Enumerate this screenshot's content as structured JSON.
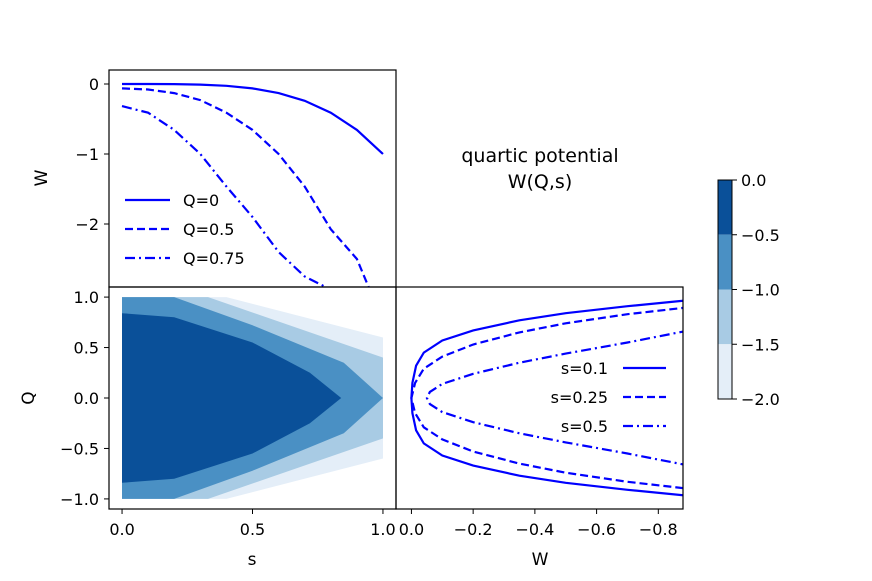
{
  "chart_data": [
    {
      "type": "line",
      "panel": "top-left",
      "xlabel": "",
      "ylabel": "W",
      "xlim": [
        -0.05,
        1.05
      ],
      "ylim": [
        -2.9,
        0.2
      ],
      "yticks": [
        0,
        -1,
        -2
      ],
      "ytick_labels": [
        "0",
        "−1",
        "−2"
      ],
      "legend_position": "lower-left",
      "series": [
        {
          "name": "Q=0",
          "dash": "solid",
          "points": [
            [
              0.0,
              0.0
            ],
            [
              0.1,
              -0.0001
            ],
            [
              0.2,
              -0.0016
            ],
            [
              0.3,
              -0.0081
            ],
            [
              0.4,
              -0.0256
            ],
            [
              0.5,
              -0.0625
            ],
            [
              0.6,
              -0.1296
            ],
            [
              0.7,
              -0.2401
            ],
            [
              0.8,
              -0.4096
            ],
            [
              0.9,
              -0.6561
            ],
            [
              1.0,
              -1.0
            ]
          ]
        },
        {
          "name": "Q=0.5",
          "dash": "dashed",
          "points": [
            [
              0.0,
              -0.0625
            ],
            [
              0.1,
              -0.0781
            ],
            [
              0.2,
              -0.1296
            ],
            [
              0.3,
              -0.2306
            ],
            [
              0.4,
              -0.4096
            ],
            [
              0.5,
              -0.6561
            ],
            [
              0.6,
              -1.0
            ],
            [
              0.7,
              -1.4641
            ],
            [
              0.8,
              -2.0736
            ],
            [
              0.9,
              -2.5
            ],
            [
              0.945,
              -2.9
            ]
          ]
        },
        {
          "name": "Q=0.75",
          "dash": "dashdot",
          "points": [
            [
              0.0,
              -0.3164
            ],
            [
              0.1,
              -0.4096
            ],
            [
              0.2,
              -0.6561
            ],
            [
              0.3,
              -1.0
            ],
            [
              0.4,
              -1.4641
            ],
            [
              0.5,
              -1.9
            ],
            [
              0.6,
              -2.4
            ],
            [
              0.7,
              -2.75
            ],
            [
              0.78,
              -2.9
            ]
          ]
        }
      ]
    },
    {
      "type": "heatmap",
      "panel": "bottom-left",
      "xlabel": "s",
      "ylabel": "Q",
      "xlim": [
        -0.05,
        1.05
      ],
      "ylim": [
        -1.1,
        1.1
      ],
      "xticks": [
        0.0,
        0.5,
        1.0
      ],
      "xtick_labels": [
        "0.0",
        "0.5",
        "1.0"
      ],
      "yticks": [
        1.0,
        0.5,
        0.0,
        -0.5,
        -1.0
      ],
      "ytick_labels": [
        "1.0",
        "0.5",
        "0.0",
        "−0.5",
        "−1.0"
      ],
      "levels": [
        -2.0,
        -1.5,
        -1.0,
        -0.5,
        0.0
      ],
      "colors": [
        "#e4eef8",
        "#a8cbe4",
        "#4a90c4",
        "#0a5099"
      ]
    },
    {
      "type": "line",
      "panel": "bottom-right",
      "xlabel": "W",
      "ylabel": "",
      "xlim": [
        0.05,
        -0.88
      ],
      "ylim": [
        -1.1,
        1.1
      ],
      "xticks": [
        0.0,
        -0.2,
        -0.4,
        -0.6,
        -0.8
      ],
      "xtick_labels": [
        "0.0",
        "−0.2",
        "−0.4",
        "−0.6",
        "−0.8"
      ],
      "legend_position": "center-right",
      "series": [
        {
          "name": "s=0.1",
          "dash": "solid",
          "points": [
            [
              -0.9,
              0.97
            ],
            [
              -0.7,
              0.91
            ],
            [
              -0.5,
              0.84
            ],
            [
              -0.35,
              0.77
            ],
            [
              -0.2,
              0.67
            ],
            [
              -0.1,
              0.57
            ],
            [
              -0.04,
              0.45
            ],
            [
              -0.015,
              0.32
            ],
            [
              -0.003,
              0.15
            ],
            [
              0.0,
              0.0
            ],
            [
              -0.003,
              -0.15
            ],
            [
              -0.015,
              -0.32
            ],
            [
              -0.04,
              -0.45
            ],
            [
              -0.1,
              -0.57
            ],
            [
              -0.2,
              -0.67
            ],
            [
              -0.35,
              -0.77
            ],
            [
              -0.5,
              -0.84
            ],
            [
              -0.7,
              -0.91
            ],
            [
              -0.9,
              -0.97
            ]
          ]
        },
        {
          "name": "s=0.25",
          "dash": "dashed",
          "points": [
            [
              -0.9,
              0.9
            ],
            [
              -0.7,
              0.83
            ],
            [
              -0.5,
              0.74
            ],
            [
              -0.35,
              0.65
            ],
            [
              -0.2,
              0.53
            ],
            [
              -0.1,
              0.41
            ],
            [
              -0.04,
              0.29
            ],
            [
              -0.012,
              0.15
            ],
            [
              0.0,
              0.0
            ],
            [
              -0.012,
              -0.15
            ],
            [
              -0.04,
              -0.29
            ],
            [
              -0.1,
              -0.41
            ],
            [
              -0.2,
              -0.53
            ],
            [
              -0.35,
              -0.65
            ],
            [
              -0.5,
              -0.74
            ],
            [
              -0.7,
              -0.83
            ],
            [
              -0.9,
              -0.9
            ]
          ]
        },
        {
          "name": "s=0.5",
          "dash": "dashdot",
          "points": [
            [
              -0.9,
              0.67
            ],
            [
              -0.7,
              0.55
            ],
            [
              -0.5,
              0.44
            ],
            [
              -0.35,
              0.35
            ],
            [
              -0.2,
              0.24
            ],
            [
              -0.1,
              0.14
            ],
            [
              -0.06,
              0.06
            ],
            [
              -0.05,
              0.0
            ],
            [
              -0.06,
              -0.06
            ],
            [
              -0.1,
              -0.14
            ],
            [
              -0.2,
              -0.24
            ],
            [
              -0.35,
              -0.35
            ],
            [
              -0.5,
              -0.44
            ],
            [
              -0.7,
              -0.55
            ],
            [
              -0.9,
              -0.67
            ]
          ]
        }
      ]
    }
  ],
  "title": {
    "line1": "quartic potential",
    "line2": "W(Q,s)"
  },
  "colorbar": {
    "levels": [
      0.0,
      -0.5,
      -1.0,
      -1.5,
      -2.0
    ],
    "tick_labels": [
      "0.0",
      "−0.5",
      "−1.0",
      "−1.5",
      "−2.0"
    ],
    "colors": [
      "#0a5099",
      "#4a90c4",
      "#a8cbe4",
      "#e4eef8"
    ]
  },
  "line_color": "#0000ff"
}
